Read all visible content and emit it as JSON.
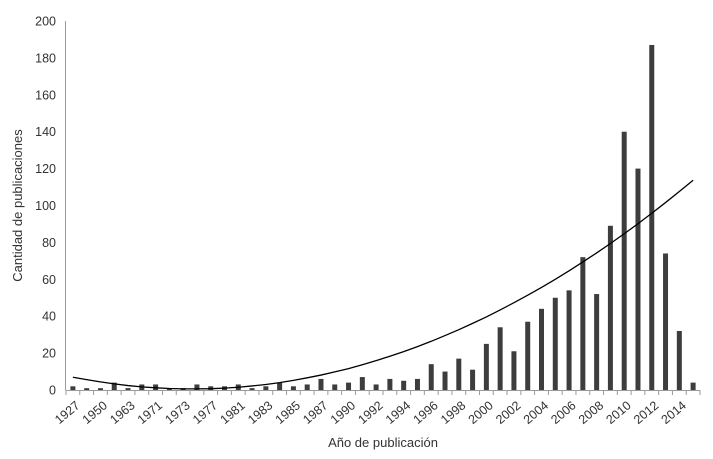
{
  "chart_data": {
    "type": "bar",
    "title": "",
    "xlabel": "Año de publicación",
    "ylabel": "Cantidad de publicaciones",
    "ylim": [
      0,
      200
    ],
    "yticks": [
      0,
      20,
      40,
      60,
      80,
      100,
      120,
      140,
      160,
      180,
      200
    ],
    "grid": false,
    "legend": "none",
    "colors": {
      "bar": "#3d3d3d",
      "trend": "#000000",
      "axis": "#9a9a9a",
      "text": "#333333"
    },
    "x_tick_labels": [
      "1927",
      "1950",
      "1963",
      "1971",
      "1973",
      "1977",
      "1981",
      "1983",
      "1985",
      "1987",
      "1990",
      "1992",
      "1994",
      "1996",
      "1998",
      "2000",
      "2002",
      "2004",
      "2006",
      "2008",
      "2010",
      "2012",
      "2014"
    ],
    "values": [
      2,
      1,
      1,
      4,
      1,
      3,
      3,
      1,
      1,
      3,
      2,
      2,
      3,
      1,
      2,
      4,
      2,
      3,
      6,
      3,
      4,
      7,
      3,
      6,
      5,
      6,
      14,
      10,
      17,
      11,
      25,
      34,
      21,
      37,
      44,
      50,
      54,
      72,
      52,
      89,
      140,
      120,
      187,
      74,
      32,
      4
    ],
    "trendline": {
      "type": "polynomial",
      "order": 2,
      "values_at_bars": [
        6.9,
        5.6,
        4.4,
        3.3,
        2.4,
        1.7,
        1.2,
        0.8,
        0.6,
        0.6,
        0.7,
        1.0,
        1.5,
        2.2,
        3.0,
        4.0,
        5.2,
        6.6,
        8.1,
        9.8,
        11.6,
        13.7,
        15.9,
        18.3,
        20.8,
        23.5,
        26.4,
        29.5,
        32.7,
        36.1,
        39.6,
        43.4,
        47.3,
        51.4,
        55.6,
        60.0,
        64.6,
        69.4,
        74.3,
        79.4,
        84.7,
        90.1,
        95.8,
        101.6,
        107.6,
        113.7
      ]
    }
  }
}
